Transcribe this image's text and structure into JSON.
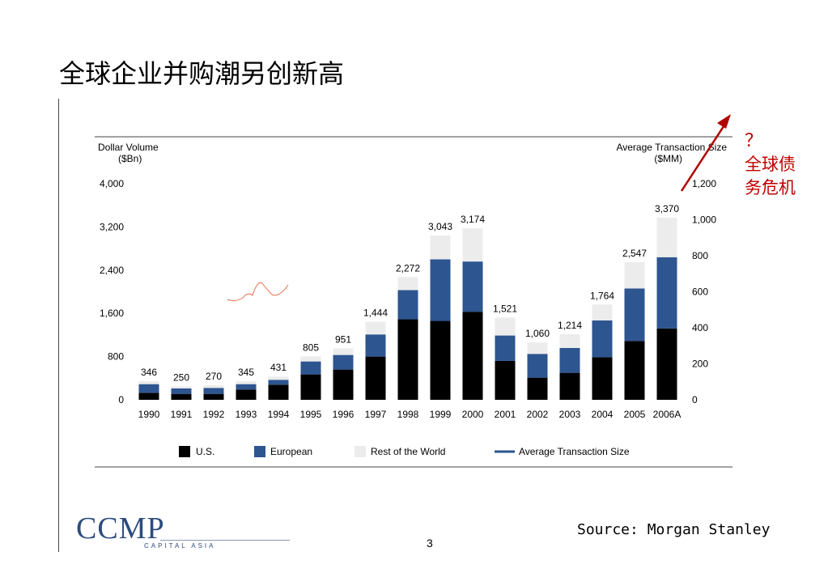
{
  "slide": {
    "title": "全球企业并购潮另创新高",
    "page_number": "3",
    "source": "Source: Morgan Stanley"
  },
  "annotation": {
    "question_mark": "？",
    "line1": "全球债",
    "line2": "务危机",
    "color": "#c00000"
  },
  "logo": {
    "name": "CCMP",
    "subtitle": "CAPITAL ASIA",
    "color": "#2d4b7c"
  },
  "chart_data": {
    "type": "bar",
    "stacked": true,
    "left_axis_title": [
      "Dollar Volume",
      "($Bn)"
    ],
    "right_axis_title": [
      "Average Transaction Size",
      "($MM)"
    ],
    "categories": [
      "1990",
      "1991",
      "1992",
      "1993",
      "1994",
      "1995",
      "1996",
      "1997",
      "1998",
      "1999",
      "2000",
      "2001",
      "2002",
      "2003",
      "2004",
      "2005",
      "2006A"
    ],
    "totals_labels": [
      "346",
      "250",
      "270",
      "345",
      "431",
      "805",
      "951",
      "1,444",
      "2,272",
      "3,043",
      "3,174",
      "1,521",
      "1,060",
      "1,214",
      "1,764",
      "2,547",
      "3,370"
    ],
    "totals": [
      346,
      250,
      270,
      345,
      431,
      805,
      951,
      1444,
      2272,
      3043,
      3174,
      1521,
      1060,
      1214,
      1764,
      2547,
      3370
    ],
    "series": [
      {
        "name": "U.S.",
        "color": "#000000",
        "values": [
          130,
          110,
          110,
          190,
          280,
          470,
          560,
          800,
          1490,
          1460,
          1630,
          720,
          410,
          500,
          790,
          1090,
          1320
        ]
      },
      {
        "name": "European",
        "color": "#2d5590",
        "values": [
          160,
          100,
          110,
          100,
          90,
          240,
          270,
          410,
          540,
          1140,
          930,
          470,
          440,
          460,
          680,
          970,
          1320
        ]
      },
      {
        "name": "Rest of the World",
        "color": "#ececec",
        "values": [
          56,
          40,
          50,
          55,
          61,
          95,
          121,
          234,
          242,
          443,
          614,
          331,
          210,
          254,
          294,
          487,
          730
        ]
      }
    ],
    "left_ticks": [
      "0",
      "800",
      "1,600",
      "2,400",
      "3,200",
      "4,000"
    ],
    "left_tick_values": [
      0,
      800,
      1600,
      2400,
      3200,
      4000
    ],
    "right_ticks": [
      "0",
      "200",
      "400",
      "600",
      "800",
      "1,000",
      "1,200"
    ],
    "right_tick_values": [
      0,
      200,
      400,
      600,
      800,
      1000,
      1200
    ],
    "ylim_left": [
      0,
      4000
    ],
    "ylim_right": [
      0,
      1200
    ],
    "legend": [
      "U.S.",
      "European",
      "Rest of the World",
      "Average Transaction Size"
    ],
    "legend_colors": [
      "#000000",
      "#2d5590",
      "#ececec",
      "#2d5590"
    ],
    "legend_placement": "bottom"
  }
}
